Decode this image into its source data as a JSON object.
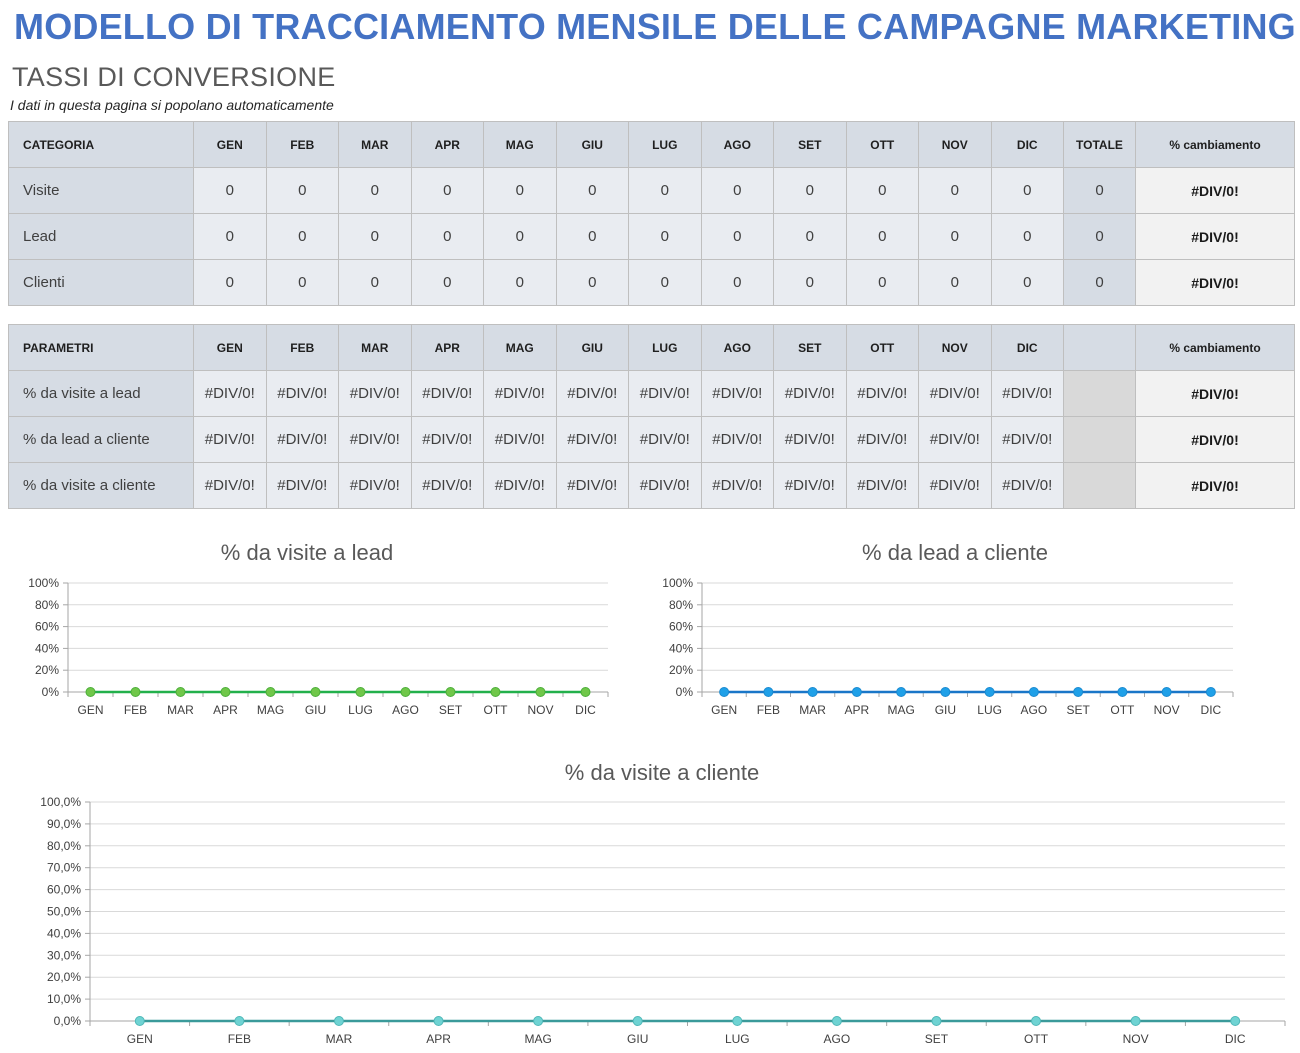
{
  "header": {
    "title": "MODELLO DI TRACCIAMENTO MENSILE DELLE CAMPAGNE MARKETING",
    "section": "TASSI DI CONVERSIONE",
    "note": "I dati in questa pagina si popolano automaticamente"
  },
  "months": [
    "GEN",
    "FEB",
    "MAR",
    "APR",
    "MAG",
    "GIU",
    "LUG",
    "AGO",
    "SET",
    "OTT",
    "NOV",
    "DIC"
  ],
  "table1": {
    "header": {
      "label": "CATEGORIA",
      "total": "TOTALE",
      "change": "% cambiamento"
    },
    "rows": [
      {
        "label": "Visite",
        "values": [
          "0",
          "0",
          "0",
          "0",
          "0",
          "0",
          "0",
          "0",
          "0",
          "0",
          "0",
          "0"
        ],
        "total": "0",
        "change": "#DIV/0!"
      },
      {
        "label": "Lead",
        "values": [
          "0",
          "0",
          "0",
          "0",
          "0",
          "0",
          "0",
          "0",
          "0",
          "0",
          "0",
          "0"
        ],
        "total": "0",
        "change": "#DIV/0!"
      },
      {
        "label": "Clienti",
        "values": [
          "0",
          "0",
          "0",
          "0",
          "0",
          "0",
          "0",
          "0",
          "0",
          "0",
          "0",
          "0"
        ],
        "total": "0",
        "change": "#DIV/0!"
      }
    ]
  },
  "table2": {
    "header": {
      "label": "PARAMETRI",
      "change": "% cambiamento"
    },
    "rows": [
      {
        "label": "% da visite a lead",
        "values": [
          "#DIV/0!",
          "#DIV/0!",
          "#DIV/0!",
          "#DIV/0!",
          "#DIV/0!",
          "#DIV/0!",
          "#DIV/0!",
          "#DIV/0!",
          "#DIV/0!",
          "#DIV/0!",
          "#DIV/0!",
          "#DIV/0!"
        ],
        "change": "#DIV/0!"
      },
      {
        "label": "% da lead a cliente",
        "values": [
          "#DIV/0!",
          "#DIV/0!",
          "#DIV/0!",
          "#DIV/0!",
          "#DIV/0!",
          "#DIV/0!",
          "#DIV/0!",
          "#DIV/0!",
          "#DIV/0!",
          "#DIV/0!",
          "#DIV/0!",
          "#DIV/0!"
        ],
        "change": "#DIV/0!"
      },
      {
        "label": "% da visite a cliente",
        "values": [
          "#DIV/0!",
          "#DIV/0!",
          "#DIV/0!",
          "#DIV/0!",
          "#DIV/0!",
          "#DIV/0!",
          "#DIV/0!",
          "#DIV/0!",
          "#DIV/0!",
          "#DIV/0!",
          "#DIV/0!",
          "#DIV/0!"
        ],
        "change": "#DIV/0!"
      }
    ]
  },
  "colors": {
    "title": "#4472c4",
    "series_visite_lead": "#70c74a",
    "series_visite_lead_line": "#22b04b",
    "series_lead_cliente": "#1fa0e8",
    "series_lead_cliente_line": "#1976c8",
    "series_visite_cliente": "#6fd3d3",
    "series_visite_cliente_line": "#3a9a9a"
  },
  "chart_data": [
    {
      "type": "line",
      "title": "% da visite a lead",
      "categories": [
        "GEN",
        "FEB",
        "MAR",
        "APR",
        "MAG",
        "GIU",
        "LUG",
        "AGO",
        "SET",
        "OTT",
        "NOV",
        "DIC"
      ],
      "series": [
        {
          "name": "% da visite a lead",
          "values": [
            0,
            0,
            0,
            0,
            0,
            0,
            0,
            0,
            0,
            0,
            0,
            0
          ]
        }
      ],
      "yticks": [
        "0%",
        "20%",
        "40%",
        "60%",
        "80%",
        "100%"
      ],
      "ylim": [
        0,
        100
      ],
      "xlabel": "",
      "ylabel": "",
      "grid": true,
      "legend": "none"
    },
    {
      "type": "line",
      "title": "% da lead a cliente",
      "categories": [
        "GEN",
        "FEB",
        "MAR",
        "APR",
        "MAG",
        "GIU",
        "LUG",
        "AGO",
        "SET",
        "OTT",
        "NOV",
        "DIC"
      ],
      "series": [
        {
          "name": "% da lead a cliente",
          "values": [
            0,
            0,
            0,
            0,
            0,
            0,
            0,
            0,
            0,
            0,
            0,
            0
          ]
        }
      ],
      "yticks": [
        "0%",
        "20%",
        "40%",
        "60%",
        "80%",
        "100%"
      ],
      "ylim": [
        0,
        100
      ],
      "xlabel": "",
      "ylabel": "",
      "grid": true,
      "legend": "none"
    },
    {
      "type": "line",
      "title": "% da visite a cliente",
      "categories": [
        "GEN",
        "FEB",
        "MAR",
        "APR",
        "MAG",
        "GIU",
        "LUG",
        "AGO",
        "SET",
        "OTT",
        "NOV",
        "DIC"
      ],
      "series": [
        {
          "name": "% da visite a cliente",
          "values": [
            0,
            0,
            0,
            0,
            0,
            0,
            0,
            0,
            0,
            0,
            0,
            0
          ]
        }
      ],
      "yticks": [
        "0,0%",
        "10,0%",
        "20,0%",
        "30,0%",
        "40,0%",
        "50,0%",
        "60,0%",
        "70,0%",
        "80,0%",
        "90,0%",
        "100,0%"
      ],
      "ylim": [
        0,
        100
      ],
      "xlabel": "",
      "ylabel": "",
      "grid": true,
      "legend": "none"
    }
  ]
}
